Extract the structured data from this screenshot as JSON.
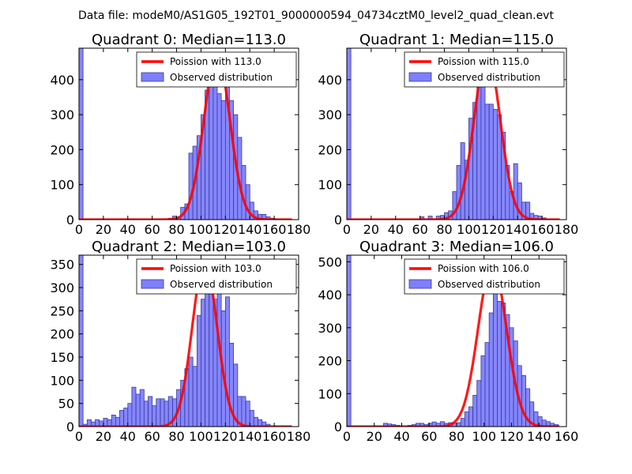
{
  "suptitle": "Data file: modeM0/AS1G05_192T01_9000000594_04734cztM0_level2_quad_clean.evt",
  "colors": {
    "bar": "#7f7fff",
    "bar_edge": "#3a3a9a",
    "fit": "#ff0000"
  },
  "chart_data": [
    {
      "type": "bar",
      "title": "Quadrant 0: Median=113.0",
      "legend": {
        "fit_label": "Poission with 113.0",
        "hist_label": "Observed distribution",
        "position": "top-right"
      },
      "xlim": [
        0,
        180
      ],
      "ylim": [
        0,
        490
      ],
      "xticks": [
        0,
        20,
        40,
        60,
        80,
        100,
        120,
        140,
        160,
        180
      ],
      "yticks": [
        0,
        100,
        200,
        300,
        400
      ],
      "bin_width": 3.33,
      "bins": [
        [
          0,
          490
        ],
        [
          73.3,
          4
        ],
        [
          76.7,
          10
        ],
        [
          80,
          6
        ],
        [
          83.3,
          35
        ],
        [
          86.7,
          45
        ],
        [
          90,
          190
        ],
        [
          93.3,
          210
        ],
        [
          96.7,
          240
        ],
        [
          100,
          300
        ],
        [
          103.3,
          370
        ],
        [
          106.7,
          420
        ],
        [
          110,
          395
        ],
        [
          113.3,
          360
        ],
        [
          116.7,
          340
        ],
        [
          120,
          395
        ],
        [
          123.3,
          340
        ],
        [
          126.7,
          300
        ],
        [
          130,
          235
        ],
        [
          133.3,
          155
        ],
        [
          136.7,
          100
        ],
        [
          140,
          50
        ],
        [
          143.3,
          25
        ],
        [
          146.7,
          15
        ],
        [
          150,
          15
        ],
        [
          153.3,
          8
        ],
        [
          156.7,
          4
        ],
        [
          160,
          2
        ]
      ],
      "fit": {
        "mean": 113.0,
        "peak": 473
      }
    },
    {
      "type": "bar",
      "title": "Quadrant 1: Median=115.0",
      "legend": {
        "fit_label": "Poission with 115.0",
        "hist_label": "Observed distribution",
        "position": "top-right"
      },
      "xlim": [
        0,
        180
      ],
      "ylim": [
        0,
        490
      ],
      "xticks": [
        0,
        20,
        40,
        60,
        80,
        100,
        120,
        140,
        160,
        180
      ],
      "yticks": [
        0,
        100,
        200,
        300,
        400
      ],
      "bin_width": 3.33,
      "bins": [
        [
          0,
          490
        ],
        [
          60,
          8
        ],
        [
          66.7,
          10
        ],
        [
          73.3,
          10
        ],
        [
          76.7,
          12
        ],
        [
          80,
          20
        ],
        [
          83.3,
          25
        ],
        [
          86.7,
          80
        ],
        [
          90,
          155
        ],
        [
          93.3,
          220
        ],
        [
          96.7,
          170
        ],
        [
          100,
          290
        ],
        [
          103.3,
          335
        ],
        [
          106.7,
          435
        ],
        [
          110,
          440
        ],
        [
          113.3,
          330
        ],
        [
          116.7,
          330
        ],
        [
          120,
          315
        ],
        [
          123.3,
          300
        ],
        [
          126.7,
          250
        ],
        [
          130,
          155
        ],
        [
          133.3,
          80
        ],
        [
          136.7,
          160
        ],
        [
          140,
          105
        ],
        [
          143.3,
          50
        ],
        [
          146.7,
          50
        ],
        [
          150,
          18
        ],
        [
          153.3,
          12
        ],
        [
          156.7,
          10
        ],
        [
          160,
          5
        ]
      ],
      "fit": {
        "mean": 115.0,
        "peak": 473
      }
    },
    {
      "type": "bar",
      "title": "Quadrant 2: Median=103.0",
      "legend": {
        "fit_label": "Poission with 103.0",
        "hist_label": "Observed distribution",
        "position": "top-right"
      },
      "xlim": [
        0,
        180
      ],
      "ylim": [
        0,
        370
      ],
      "xticks": [
        0,
        20,
        40,
        60,
        80,
        100,
        120,
        140,
        160,
        180
      ],
      "yticks": [
        0,
        50,
        100,
        150,
        200,
        250,
        300,
        350
      ],
      "bin_width": 3.33,
      "bins": [
        [
          0,
          370
        ],
        [
          3.3,
          5
        ],
        [
          6.7,
          15
        ],
        [
          10,
          10
        ],
        [
          13.3,
          15
        ],
        [
          16.7,
          12
        ],
        [
          20,
          18
        ],
        [
          23.3,
          15
        ],
        [
          26.7,
          25
        ],
        [
          30,
          20
        ],
        [
          33.3,
          35
        ],
        [
          36.7,
          40
        ],
        [
          40,
          50
        ],
        [
          43.3,
          85
        ],
        [
          46.7,
          70
        ],
        [
          50,
          80
        ],
        [
          53.3,
          55
        ],
        [
          56.7,
          65
        ],
        [
          60,
          45
        ],
        [
          63.3,
          60
        ],
        [
          66.7,
          60
        ],
        [
          70,
          55
        ],
        [
          73.3,
          65
        ],
        [
          76.7,
          60
        ],
        [
          80,
          80
        ],
        [
          83.3,
          100
        ],
        [
          86.7,
          125
        ],
        [
          90,
          150
        ],
        [
          93.3,
          130
        ],
        [
          96.7,
          240
        ],
        [
          100,
          275
        ],
        [
          103.3,
          340
        ],
        [
          106.7,
          310
        ],
        [
          110,
          275
        ],
        [
          113.3,
          355
        ],
        [
          116.7,
          250
        ],
        [
          120,
          280
        ],
        [
          123.3,
          180
        ],
        [
          126.7,
          135
        ],
        [
          130,
          65
        ],
        [
          133.3,
          65
        ],
        [
          136.7,
          55
        ],
        [
          140,
          35
        ],
        [
          143.3,
          20
        ],
        [
          146.7,
          15
        ],
        [
          150,
          10
        ],
        [
          153.3,
          5
        ]
      ],
      "fit": {
        "mean": 103.0,
        "peak": 357
      }
    },
    {
      "type": "bar",
      "title": "Quadrant 3: Median=106.0",
      "legend": {
        "fit_label": "Poission with 106.0",
        "hist_label": "Observed distribution",
        "position": "top-right"
      },
      "xlim": [
        0,
        160
      ],
      "ylim": [
        0,
        520
      ],
      "xticks": [
        0,
        20,
        40,
        60,
        80,
        100,
        120,
        140,
        160
      ],
      "yticks": [
        0,
        100,
        200,
        300,
        400,
        500
      ],
      "bin_width": 2.96,
      "bins": [
        [
          0,
          520
        ],
        [
          26.7,
          10
        ],
        [
          29.6,
          8
        ],
        [
          32.6,
          6
        ],
        [
          35.6,
          4
        ],
        [
          44.4,
          4
        ],
        [
          47.4,
          6
        ],
        [
          50.4,
          10
        ],
        [
          53.3,
          10
        ],
        [
          56.3,
          6
        ],
        [
          59.3,
          10
        ],
        [
          62.2,
          14
        ],
        [
          65.2,
          10
        ],
        [
          68.1,
          15
        ],
        [
          71.1,
          10
        ],
        [
          74.1,
          12
        ],
        [
          77.0,
          10
        ],
        [
          80.0,
          12
        ],
        [
          83.0,
          25
        ],
        [
          85.9,
          45
        ],
        [
          88.9,
          60
        ],
        [
          91.9,
          95
        ],
        [
          94.8,
          140
        ],
        [
          97.8,
          215
        ],
        [
          100.7,
          255
        ],
        [
          103.7,
          345
        ],
        [
          106.7,
          430
        ],
        [
          109.6,
          380
        ],
        [
          112.6,
          375
        ],
        [
          115.6,
          340
        ],
        [
          118.5,
          300
        ],
        [
          121.5,
          260
        ],
        [
          124.4,
          185
        ],
        [
          127.4,
          155
        ],
        [
          130.4,
          115
        ],
        [
          133.3,
          75
        ],
        [
          136.3,
          45
        ],
        [
          139.3,
          30
        ],
        [
          142.2,
          20
        ],
        [
          145.2,
          15
        ],
        [
          148.1,
          10
        ],
        [
          151.1,
          6
        ]
      ],
      "fit": {
        "mean": 106.0,
        "peak": 494
      }
    }
  ]
}
